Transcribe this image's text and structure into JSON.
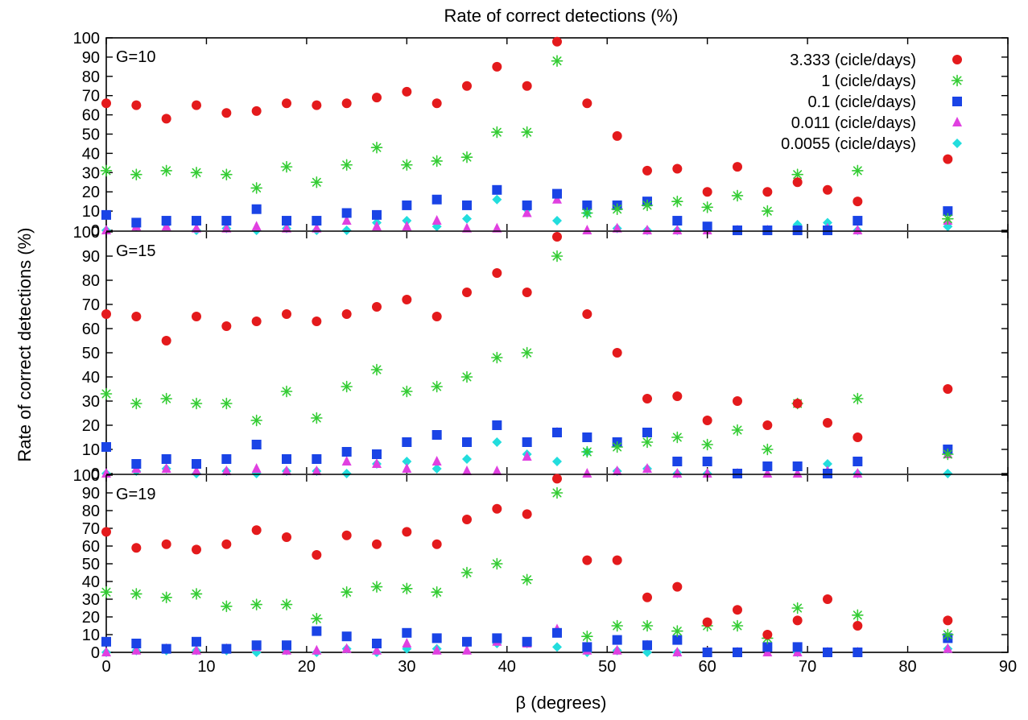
{
  "chart_data": {
    "type": "scatter",
    "title": "Rate of correct detections (%)",
    "xlabel": "β (degrees)",
    "ylabel": "Rate of correct detections (%)",
    "xlim": [
      0,
      90
    ],
    "ylim": [
      0,
      100
    ],
    "x_ticks": [
      "0",
      "10",
      "20",
      "30",
      "40",
      "50",
      "60",
      "70",
      "80",
      "90"
    ],
    "y_ticks": [
      "0",
      "10",
      "20",
      "30",
      "40",
      "50",
      "60",
      "70",
      "80",
      "90",
      "100"
    ],
    "grid": false,
    "legend_position": "top-right",
    "x": [
      0,
      3,
      6,
      9,
      12,
      15,
      18,
      21,
      24,
      27,
      30,
      33,
      36,
      39,
      42,
      45,
      48,
      51,
      54,
      57,
      60,
      63,
      66,
      69,
      72,
      75,
      84
    ],
    "series_meta": [
      {
        "key": "s1",
        "name": "3.333 (cicle/days)",
        "color": "#e41a1c",
        "marker": "circle"
      },
      {
        "key": "s2",
        "name": "1 (cicle/days)",
        "color": "#33cc33",
        "marker": "star"
      },
      {
        "key": "s3",
        "name": "0.1 (cicle/days)",
        "color": "#1a44e6",
        "marker": "square"
      },
      {
        "key": "s4",
        "name": "0.011 (cicle/days)",
        "color": "#e040e0",
        "marker": "triangle"
      },
      {
        "key": "s5",
        "name": "0.0055 (cicle/days)",
        "color": "#22dddd",
        "marker": "diamond"
      }
    ],
    "panels": [
      {
        "label": "G=10",
        "series": {
          "s1": [
            66,
            65,
            58,
            65,
            61,
            62,
            66,
            65,
            66,
            69,
            72,
            66,
            75,
            85,
            75,
            98,
            66,
            49,
            31,
            32,
            20,
            33,
            20,
            25,
            21,
            15,
            37
          ],
          "s2": [
            31,
            29,
            31,
            30,
            29,
            22,
            33,
            25,
            34,
            43,
            34,
            36,
            38,
            51,
            51,
            88,
            9,
            11,
            13,
            15,
            12,
            18,
            10,
            29,
            null,
            31,
            6
          ],
          "s3": [
            8,
            4,
            5,
            5,
            5,
            11,
            5,
            5,
            9,
            8,
            13,
            16,
            13,
            21,
            13,
            19,
            13,
            13,
            15,
            5,
            2,
            0,
            0,
            0,
            0,
            5,
            10
          ],
          "s4": [
            0,
            2,
            2,
            1,
            1,
            2,
            1,
            1,
            5,
            2,
            2,
            5,
            1,
            1,
            9,
            16,
            0,
            1,
            0,
            0,
            0,
            0,
            0,
            0,
            1,
            0,
            5
          ],
          "s5": [
            0,
            2,
            3,
            0,
            1,
            0,
            1,
            0,
            0,
            4,
            5,
            2,
            6,
            16,
            11,
            5,
            9,
            1,
            0,
            0,
            1,
            0,
            0,
            3,
            4,
            0,
            2
          ]
        }
      },
      {
        "label": "G=15",
        "series": {
          "s1": [
            66,
            65,
            55,
            65,
            61,
            63,
            66,
            63,
            66,
            69,
            72,
            65,
            75,
            83,
            75,
            98,
            66,
            50,
            31,
            32,
            22,
            30,
            20,
            29,
            21,
            15,
            35
          ],
          "s2": [
            33,
            29,
            31,
            29,
            29,
            22,
            34,
            23,
            36,
            43,
            34,
            36,
            40,
            48,
            50,
            90,
            9,
            11,
            13,
            15,
            12,
            18,
            10,
            29,
            null,
            31,
            8
          ],
          "s3": [
            11,
            4,
            6,
            4,
            6,
            12,
            6,
            6,
            9,
            8,
            13,
            16,
            13,
            20,
            13,
            17,
            15,
            13,
            17,
            5,
            5,
            0,
            3,
            3,
            0,
            5,
            10
          ],
          "s4": [
            0,
            2,
            2,
            1,
            1,
            2,
            1,
            1,
            5,
            4,
            2,
            5,
            1,
            1,
            7,
            17,
            0,
            1,
            2,
            0,
            0,
            0,
            0,
            0,
            1,
            0,
            8
          ],
          "s5": [
            0,
            1,
            2,
            0,
            1,
            0,
            1,
            1,
            0,
            4,
            5,
            2,
            6,
            13,
            8,
            5,
            9,
            1,
            2,
            0,
            0,
            0,
            3,
            3,
            4,
            0,
            0
          ]
        }
      },
      {
        "label": "G=19",
        "series": {
          "s1": [
            68,
            59,
            61,
            58,
            61,
            69,
            65,
            55,
            66,
            61,
            68,
            61,
            75,
            81,
            78,
            98,
            52,
            52,
            31,
            37,
            17,
            24,
            10,
            18,
            30,
            15,
            18
          ],
          "s2": [
            34,
            33,
            31,
            33,
            26,
            27,
            27,
            19,
            34,
            37,
            36,
            34,
            45,
            50,
            41,
            90,
            9,
            15,
            15,
            12,
            15,
            15,
            8,
            25,
            null,
            21,
            10
          ],
          "s3": [
            6,
            5,
            2,
            6,
            2,
            4,
            4,
            12,
            9,
            5,
            11,
            8,
            6,
            8,
            6,
            11,
            3,
            7,
            4,
            7,
            0,
            0,
            3,
            3,
            0,
            0,
            8
          ],
          "s4": [
            0,
            1,
            2,
            1,
            2,
            3,
            1,
            1,
            2,
            1,
            5,
            1,
            1,
            6,
            5,
            13,
            1,
            1,
            4,
            0,
            0,
            0,
            0,
            0,
            0,
            0,
            2
          ],
          "s5": [
            0,
            1,
            1,
            1,
            1,
            0,
            1,
            0,
            2,
            0,
            2,
            2,
            5,
            5,
            5,
            3,
            0,
            1,
            0,
            0,
            0,
            0,
            3,
            0,
            0,
            0,
            2
          ]
        }
      }
    ]
  }
}
